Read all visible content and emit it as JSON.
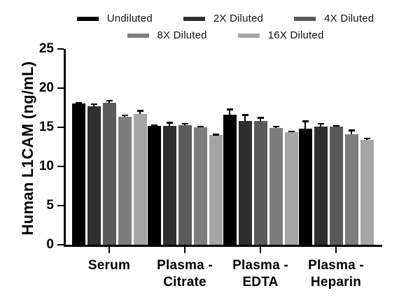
{
  "figure": {
    "background": "#ffffff",
    "axis_color": "#000000"
  },
  "chart_data": {
    "type": "bar",
    "title": "",
    "xlabel": "",
    "ylabel": "Human L1CAM (ng/mL)",
    "ylim": [
      0,
      25
    ],
    "yticks": [
      0,
      5,
      10,
      15,
      20,
      25
    ],
    "grid": false,
    "legend_position": "top",
    "error_bars": "upper",
    "categories": [
      "Serum",
      "Plasma - Citrate",
      "Plasma - EDTA",
      "Plasma - Heparin"
    ],
    "category_label_lines": [
      [
        "Serum"
      ],
      [
        "Plasma -",
        "Citrate"
      ],
      [
        "Plasma -",
        "EDTA"
      ],
      [
        "Plasma -",
        "Heparin"
      ]
    ],
    "series": [
      {
        "name": "Undiluted",
        "color": "#000000",
        "values": [
          18.0,
          15.2,
          16.6,
          14.8
        ],
        "errors": [
          0.2,
          0.2,
          0.8,
          1.1
        ]
      },
      {
        "name": "2X Diluted",
        "color": "#2e2e2e",
        "values": [
          17.7,
          15.2,
          15.8,
          15.1
        ],
        "errors": [
          0.35,
          0.5,
          0.9,
          0.45
        ]
      },
      {
        "name": "4X Diluted",
        "color": "#5a5a5a",
        "values": [
          18.1,
          15.3,
          15.8,
          15.1
        ],
        "errors": [
          0.4,
          0.25,
          0.5,
          0.2
        ]
      },
      {
        "name": "8X Diluted",
        "color": "#7d7d7d",
        "values": [
          16.3,
          15.0,
          14.9,
          14.1
        ],
        "errors": [
          0.35,
          0.2,
          0.3,
          0.6
        ]
      },
      {
        "name": "16X Diluted",
        "color": "#a5a5a5",
        "values": [
          16.7,
          14.0,
          14.4,
          13.4
        ],
        "errors": [
          0.5,
          0.2,
          0.2,
          0.3
        ]
      }
    ],
    "legend_rows": [
      [
        "Undiluted",
        "2X Diluted",
        "4X Diluted"
      ],
      [
        "8X Diluted",
        "16X Diluted"
      ]
    ]
  }
}
